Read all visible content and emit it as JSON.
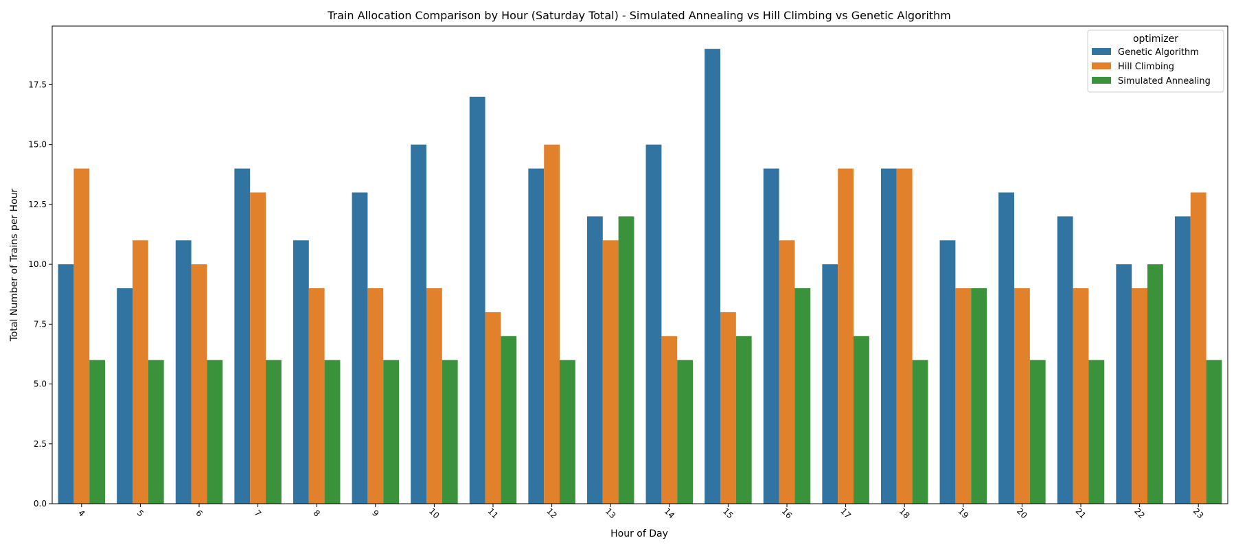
{
  "chart_data": {
    "type": "bar",
    "title": "Train Allocation Comparison by Hour (Saturday Total) - Simulated Annealing vs Hill Climbing vs Genetic Algorithm",
    "xlabel": "Hour of Day",
    "ylabel": "Total Number of Trains per Hour",
    "categories": [
      "4",
      "5",
      "6",
      "7",
      "8",
      "9",
      "10",
      "11",
      "12",
      "13",
      "14",
      "15",
      "16",
      "17",
      "18",
      "19",
      "20",
      "21",
      "22",
      "23"
    ],
    "series": [
      {
        "name": "Genetic Algorithm",
        "color": "#3274a1",
        "values": [
          10,
          9,
          11,
          14,
          11,
          13,
          15,
          17,
          14,
          12,
          15,
          19,
          14,
          10,
          14,
          11,
          13,
          12,
          10,
          12
        ]
      },
      {
        "name": "Hill Climbing",
        "color": "#e1812c",
        "values": [
          14,
          11,
          10,
          13,
          9,
          9,
          9,
          8,
          15,
          11,
          7,
          8,
          11,
          14,
          14,
          9,
          9,
          9,
          9,
          13
        ]
      },
      {
        "name": "Simulated Annealing",
        "color": "#3a923a",
        "values": [
          6,
          6,
          6,
          6,
          6,
          6,
          6,
          7,
          6,
          12,
          6,
          7,
          9,
          7,
          6,
          9,
          6,
          6,
          10,
          6
        ]
      }
    ],
    "ylim": [
      0,
      19.95
    ],
    "yticks": [
      0.0,
      2.5,
      5.0,
      7.5,
      10.0,
      12.5,
      15.0,
      17.5
    ],
    "ytick_labels": [
      "0.0",
      "2.5",
      "5.0",
      "7.5",
      "10.0",
      "12.5",
      "15.0",
      "17.5"
    ],
    "x_tick_rotation": "45deg",
    "legend": {
      "title": "optimizer",
      "position": "upper-right"
    },
    "grid": false
  }
}
